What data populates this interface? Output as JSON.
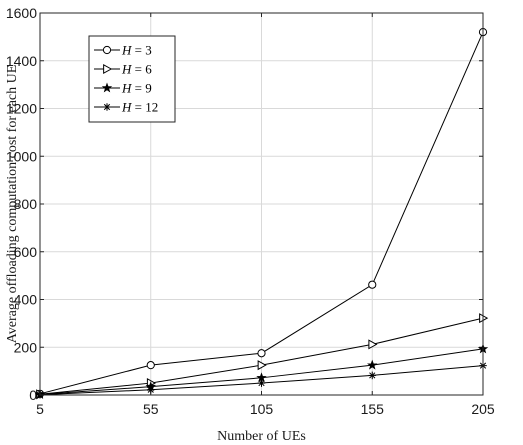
{
  "chart_data": {
    "type": "line",
    "xlabel": "Number of UEs",
    "ylabel": "Average offloading computation cost for each UE",
    "x": [
      5,
      55,
      105,
      155,
      205
    ],
    "xticks": [
      "5",
      "55",
      "105",
      "155",
      "205"
    ],
    "xlim": [
      5,
      205
    ],
    "ylim": [
      0,
      1600
    ],
    "yticks": [
      "0",
      "200",
      "400",
      "600",
      "800",
      "1000",
      "1200",
      "1400",
      "1600"
    ],
    "grid": true,
    "legend_position": "top-left",
    "series": [
      {
        "name": "H = 3",
        "var": "H",
        "rest": " = 3",
        "marker": "circle",
        "values": [
          5,
          125,
          175,
          462,
          1520
        ]
      },
      {
        "name": "H = 6",
        "var": "H",
        "rest": " = 6",
        "marker": "triangle-right",
        "values": [
          3,
          50,
          125,
          212,
          322
        ]
      },
      {
        "name": "H = 9",
        "var": "H",
        "rest": " = 9",
        "marker": "star5",
        "values": [
          2,
          35,
          72,
          125,
          193
        ]
      },
      {
        "name": "H = 12",
        "var": "H",
        "rest": " = 12",
        "marker": "asterisk",
        "values": [
          1,
          22,
          50,
          82,
          123
        ]
      }
    ],
    "colors": {
      "line": "#000000",
      "grid": "#d9d9d9",
      "axis": "#262626"
    }
  }
}
